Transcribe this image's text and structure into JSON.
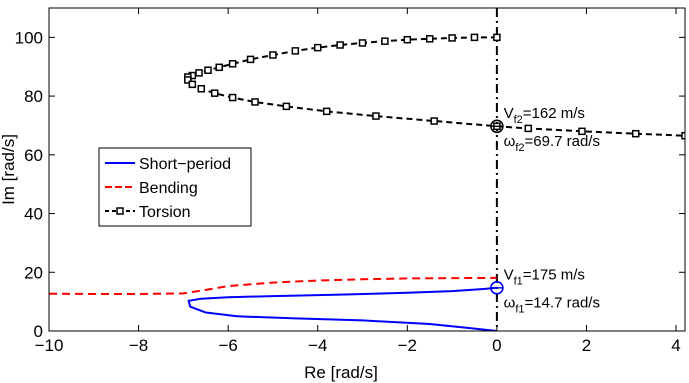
{
  "chart_data": {
    "type": "line",
    "xlabel": "Re [rad/s]",
    "ylabel": "Im [rad/s]",
    "xlim": [
      -10,
      4.2
    ],
    "ylim": [
      0,
      110
    ],
    "xticks": [
      -10,
      -8,
      -6,
      -4,
      -2,
      0,
      2,
      4
    ],
    "xtick_labels": [
      "−10",
      "−8",
      "−6",
      "−4",
      "−2",
      "0",
      "2",
      "4"
    ],
    "yticks": [
      0,
      20,
      40,
      60,
      80,
      100
    ],
    "ytick_labels": [
      "0",
      "20",
      "40",
      "60",
      "80",
      "100"
    ],
    "grid": false,
    "legend_position": "center-left",
    "series": [
      {
        "name": "Short−period",
        "color": "#0000ff",
        "style": "solid",
        "x": [
          0.0,
          -0.6,
          -1.5,
          -3.0,
          -4.5,
          -5.8,
          -6.5,
          -6.85,
          -6.88,
          -6.6,
          -6.0,
          -5.0,
          -3.5,
          -2.0,
          -1.0,
          -0.3,
          0.0
        ],
        "y": [
          0.0,
          1.0,
          2.4,
          3.6,
          4.3,
          5.0,
          6.3,
          8.3,
          10.3,
          11.0,
          11.5,
          11.9,
          12.4,
          13.0,
          13.6,
          14.3,
          14.7
        ]
      },
      {
        "name": "Bending",
        "color": "#ff0000",
        "style": "dashed",
        "x": [
          -10.0,
          -9.0,
          -8.0,
          -7.0,
          -6.5,
          -6.0,
          -5.0,
          -4.0,
          -3.0,
          -2.0,
          -1.0,
          0.0
        ],
        "y": [
          12.7,
          12.6,
          12.6,
          12.8,
          14.0,
          15.3,
          16.5,
          17.2,
          17.6,
          17.9,
          18.0,
          18.1
        ]
      },
      {
        "name": "Torsion",
        "color": "#000000",
        "style": "dashed-square-markers",
        "x": [
          0.0,
          -0.5,
          -1.0,
          -1.5,
          -2.0,
          -2.5,
          -3.0,
          -3.5,
          -4.0,
          -4.5,
          -5.0,
          -5.5,
          -5.9,
          -6.2,
          -6.45,
          -6.65,
          -6.8,
          -6.9,
          -6.9,
          -6.8,
          -6.6,
          -6.3,
          -5.9,
          -5.4,
          -4.7,
          -3.8,
          -2.7,
          -1.4,
          0.0,
          0.7,
          1.9,
          3.1,
          4.2
        ],
        "y": [
          100.0,
          100.0,
          99.8,
          99.5,
          99.2,
          98.7,
          98.1,
          97.4,
          96.5,
          95.4,
          94.0,
          92.5,
          91.0,
          89.8,
          88.8,
          87.9,
          87.0,
          86.5,
          85.5,
          84.0,
          82.5,
          81.0,
          79.5,
          78.0,
          76.5,
          74.8,
          73.2,
          71.5,
          69.7,
          69.0,
          68.0,
          67.2,
          66.5
        ]
      }
    ],
    "markers": [
      {
        "x": 0,
        "y": 14.7,
        "color": "#0000ff"
      },
      {
        "x": 0,
        "y": 69.7,
        "color": "#000000"
      }
    ],
    "reference_line": {
      "x": 0,
      "style": "dash-dot",
      "color": "#000000"
    },
    "annotations": [
      {
        "main": "V",
        "sub": "f2",
        "rest": "=162 m/s",
        "x": 0.15,
        "y": 72.5
      },
      {
        "main": "ω",
        "sub": "f2",
        "rest": "=69.7 rad/s",
        "x": 0.15,
        "y": 63.0
      },
      {
        "main": "V",
        "sub": "f1",
        "rest": "=175 m/s",
        "x": 0.15,
        "y": 17.5
      },
      {
        "main": "ω",
        "sub": "f1",
        "rest": "=14.7 rad/s",
        "x": 0.15,
        "y": 8.0
      }
    ]
  }
}
